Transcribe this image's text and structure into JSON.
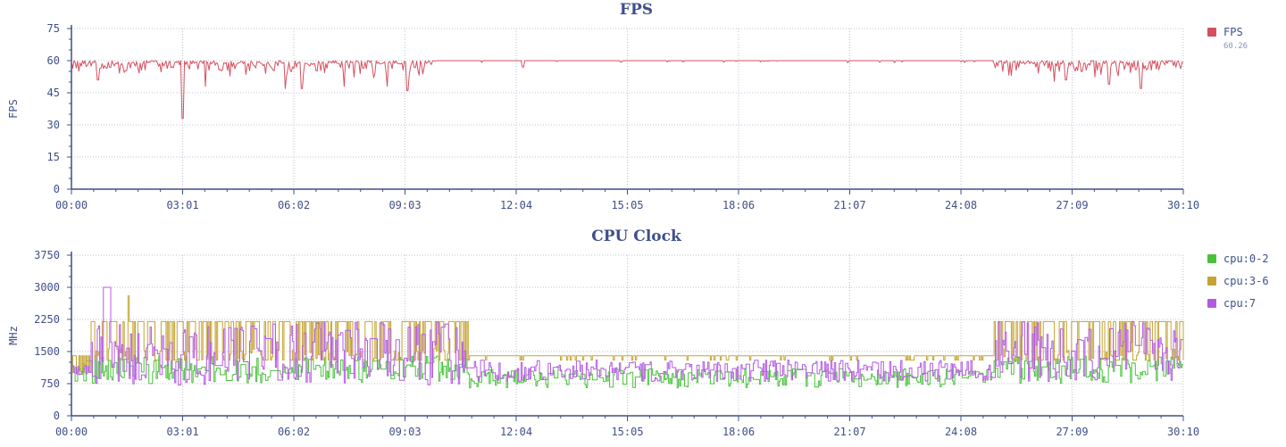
{
  "chart_data": [
    {
      "type": "line",
      "title": "FPS",
      "ylabel": "FPS",
      "xlabel": "",
      "ylim": [
        0,
        75
      ],
      "yticks": [
        0,
        15,
        30,
        45,
        60,
        75
      ],
      "xlim_seconds": [
        0,
        1810
      ],
      "xticks": [
        "00:00",
        "03:01",
        "06:02",
        "09:03",
        "12:04",
        "15:05",
        "18:06",
        "21:07",
        "24:08",
        "27:09",
        "30:10"
      ],
      "grid": true,
      "legend_position": "right",
      "series": [
        {
          "name": "FPS",
          "legend_value": "60.26",
          "color": "#d4505f",
          "baseline": 60,
          "segments": [
            {
              "from": "00:00",
              "to": "09:46",
              "typical_min": 52,
              "notes": "frequent dips below 60"
            },
            {
              "from": "09:46",
              "to": "25:00",
              "typical_min": 59,
              "notes": "stable near 60"
            },
            {
              "from": "25:00",
              "to": "30:10",
              "typical_min": 50,
              "notes": "frequent dips below 60"
            }
          ],
          "dips": [
            {
              "t": "00:43",
              "v": 51
            },
            {
              "t": "03:01",
              "v": 33
            },
            {
              "t": "03:38",
              "v": 48
            },
            {
              "t": "05:48",
              "v": 47
            },
            {
              "t": "06:15",
              "v": 47
            },
            {
              "t": "07:24",
              "v": 48
            },
            {
              "t": "08:34",
              "v": 48
            },
            {
              "t": "09:07",
              "v": 46
            },
            {
              "t": "12:15",
              "v": 57
            },
            {
              "t": "25:30",
              "v": 53
            },
            {
              "t": "26:59",
              "v": 51
            },
            {
              "t": "28:09",
              "v": 49
            },
            {
              "t": "29:01",
              "v": 47
            }
          ]
        }
      ]
    },
    {
      "type": "line",
      "title": "CPU Clock",
      "ylabel": "MHz",
      "xlabel": "",
      "ylim": [
        0,
        3750
      ],
      "yticks": [
        0,
        750,
        1500,
        2250,
        3000,
        3750
      ],
      "xlim_seconds": [
        0,
        1810
      ],
      "xticks": [
        "00:00",
        "03:01",
        "06:02",
        "09:03",
        "12:04",
        "15:05",
        "18:06",
        "21:07",
        "24:08",
        "27:09",
        "30:10"
      ],
      "grid": true,
      "legend_position": "right",
      "series": [
        {
          "name": "cpu:0-2",
          "color": "#49c23b",
          "segments": [
            {
              "from": "00:00",
              "to": "10:45",
              "low": 750,
              "high": 1400
            },
            {
              "from": "10:45",
              "to": "25:00",
              "low": 650,
              "high": 1100
            },
            {
              "from": "25:00",
              "to": "30:10",
              "low": 750,
              "high": 1400
            }
          ]
        },
        {
          "name": "cpu:3-6",
          "color": "#c4a332",
          "segments": [
            {
              "from": "00:00",
              "to": "00:30",
              "low": 1000,
              "high": 1400
            },
            {
              "from": "00:30",
              "to": "10:45",
              "low": 1300,
              "high": 2200,
              "peak": 2800
            },
            {
              "from": "10:45",
              "to": "25:00",
              "low": 1300,
              "high": 1400
            },
            {
              "from": "25:00",
              "to": "30:10",
              "low": 1300,
              "high": 2200
            }
          ]
        },
        {
          "name": "cpu:7",
          "color": "#b35ae0",
          "segments": [
            {
              "from": "00:00",
              "to": "00:30",
              "low": 950,
              "high": 1200
            },
            {
              "from": "00:30",
              "to": "10:45",
              "low": 700,
              "high": 2200,
              "peak": 3000
            },
            {
              "from": "10:45",
              "to": "25:00",
              "low": 800,
              "high": 1300
            },
            {
              "from": "25:00",
              "to": "30:10",
              "low": 800,
              "high": 2200
            }
          ]
        }
      ]
    }
  ]
}
